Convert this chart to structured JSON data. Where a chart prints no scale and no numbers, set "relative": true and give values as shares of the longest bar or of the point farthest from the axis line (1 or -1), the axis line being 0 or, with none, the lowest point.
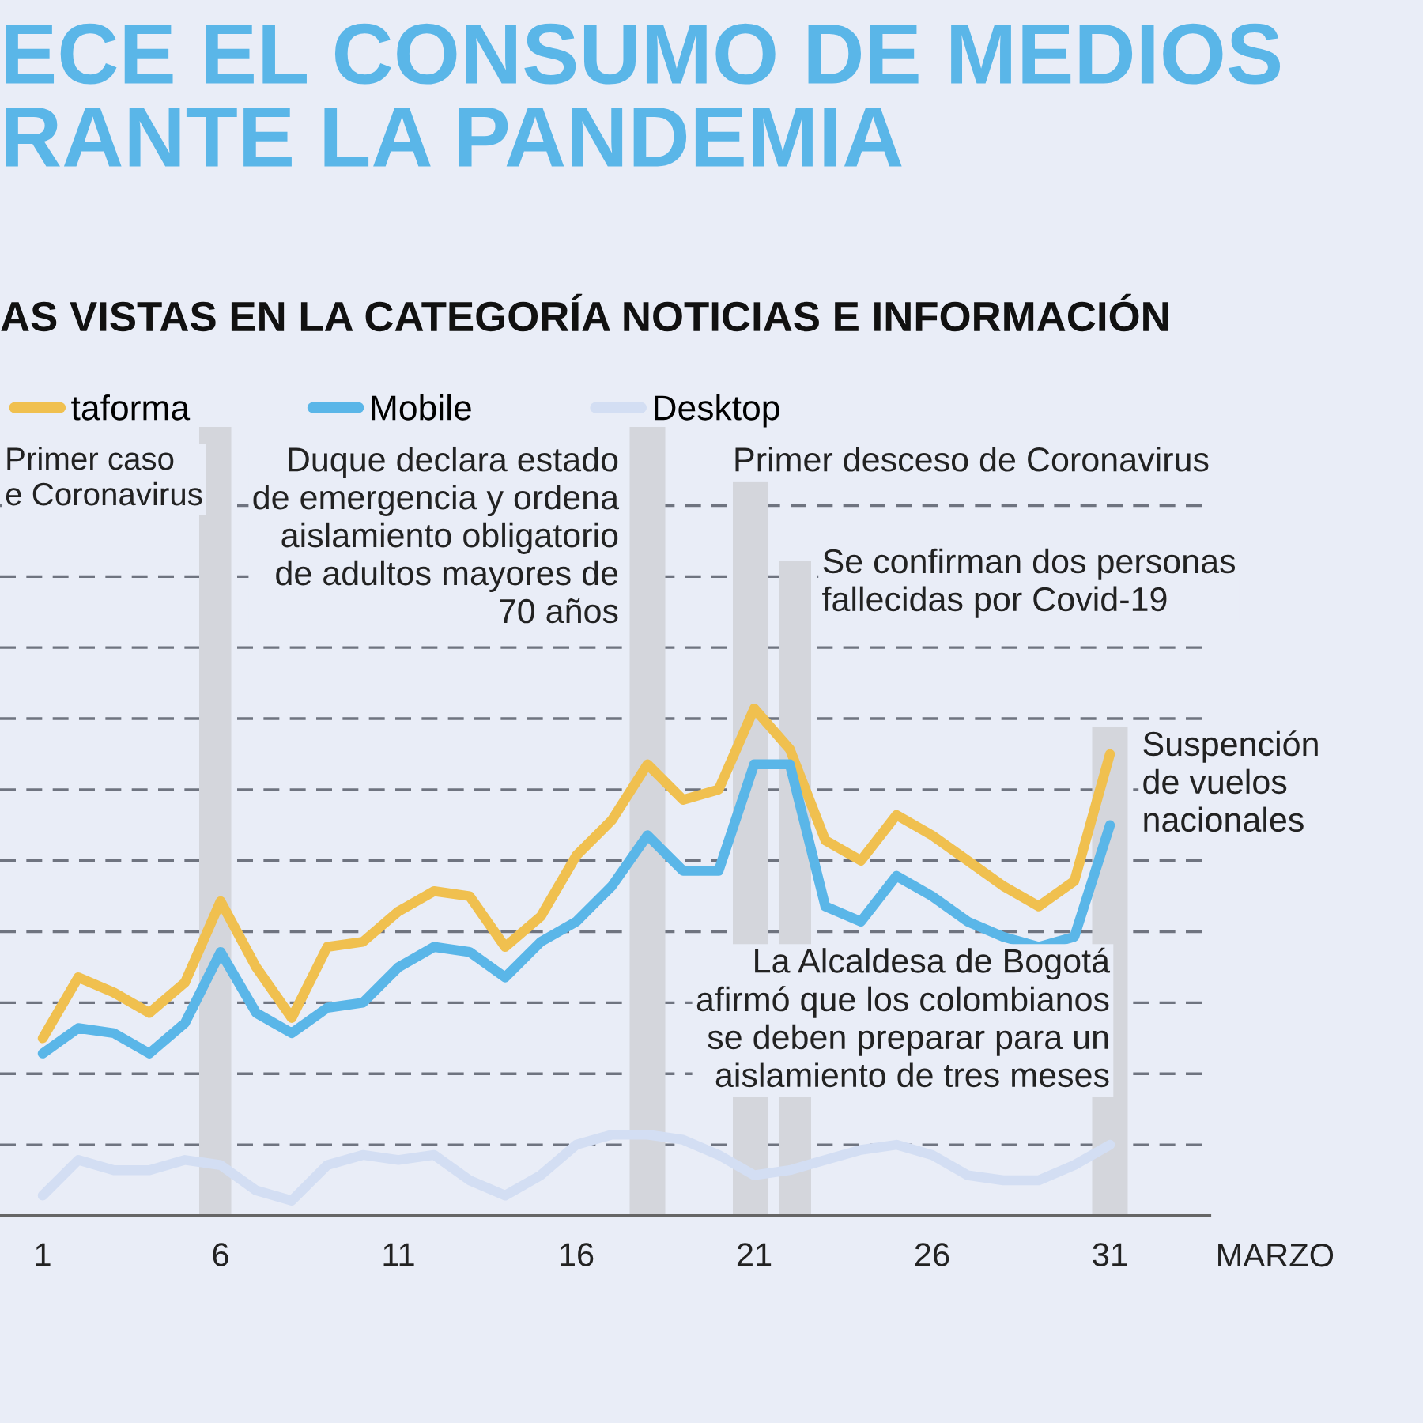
{
  "chart_data": {
    "type": "line",
    "title": "ECE EL CONSUMO DE MEDIOS\nRANTE LA PANDEMIA",
    "subtitle": "AS VISTAS EN LA CATEGORÍA NOTICIAS E INFORMACIÓN",
    "xlabel": "MARZO",
    "x": [
      1,
      2,
      3,
      4,
      5,
      6,
      7,
      8,
      9,
      10,
      11,
      12,
      13,
      14,
      15,
      16,
      17,
      18,
      19,
      20,
      21,
      22,
      23,
      24,
      25,
      26,
      27,
      28,
      29,
      30,
      31
    ],
    "xlim": [
      -0.2,
      33.8
    ],
    "xticks": [
      1,
      6,
      11,
      16,
      21,
      26,
      31
    ],
    "relative": true,
    "grid": "y",
    "legend": "top left",
    "line_style": "solid",
    "series": [
      {
        "name": "taforma",
        "color": "#f0c04f",
        "values": [
          0.35,
          0.47,
          0.44,
          0.4,
          0.46,
          0.62,
          0.49,
          0.39,
          0.53,
          0.54,
          0.6,
          0.64,
          0.63,
          0.53,
          0.59,
          0.71,
          0.78,
          0.89,
          0.82,
          0.84,
          1,
          0.92,
          0.74,
          0.7,
          0.79,
          0.75,
          0.7,
          0.65,
          0.61,
          0.66,
          0.91
        ]
      },
      {
        "name": "Mobile",
        "color": "#5ab6e8",
        "values": [
          0.32,
          0.37,
          0.36,
          0.32,
          0.38,
          0.52,
          0.4,
          0.36,
          0.41,
          0.42,
          0.49,
          0.53,
          0.52,
          0.47,
          0.54,
          0.58,
          0.65,
          0.75,
          0.68,
          0.68,
          0.89,
          0.89,
          0.61,
          0.58,
          0.67,
          0.63,
          0.58,
          0.55,
          0.53,
          0.55,
          0.77
        ]
      },
      {
        "name": "Desktop",
        "color": "#d3def3",
        "values": [
          0.04,
          0.11,
          0.09,
          0.09,
          0.11,
          0.1,
          0.05,
          0.03,
          0.1,
          0.12,
          0.11,
          0.12,
          0.07,
          0.04,
          0.08,
          0.14,
          0.16,
          0.16,
          0.15,
          0.12,
          0.08,
          0.09,
          0.11,
          0.13,
          0.14,
          0.12,
          0.08,
          0.07,
          0.07,
          0.1,
          0.14
        ]
      }
    ],
    "bands": [
      {
        "axis": "x",
        "from": 5.4,
        "to": 6.3,
        "label": "Primer caso\ne Coronavirus",
        "color": "#d4d6dc"
      },
      {
        "axis": "x",
        "from": 17.5,
        "to": 18.5,
        "label": "Duque declara estado\nde emergencia y ordena\naislamiento obligatorio\nde adultos mayores de\n70 años",
        "color": "#d4d6dc"
      },
      {
        "axis": "x",
        "from": 20.4,
        "to": 21.4,
        "label": "Primer desceso de Coronavirus",
        "color": "#d4d6dc"
      },
      {
        "axis": "x",
        "from": 21.7,
        "to": 22.6,
        "label": "Se confirman dos personas\nfallecidas por Covid-19",
        "color": "#d4d6dc"
      },
      {
        "axis": "x",
        "from": 30.5,
        "to": 31.5,
        "label": "Suspención\nde vuelos\nnacionales",
        "color": "#d4d6dc"
      }
    ],
    "annotations": [
      "La Alcaldesa de Bogotá\nafirmó que los colombianos\nse deben preparar para un\naislamiento de tres meses"
    ]
  }
}
